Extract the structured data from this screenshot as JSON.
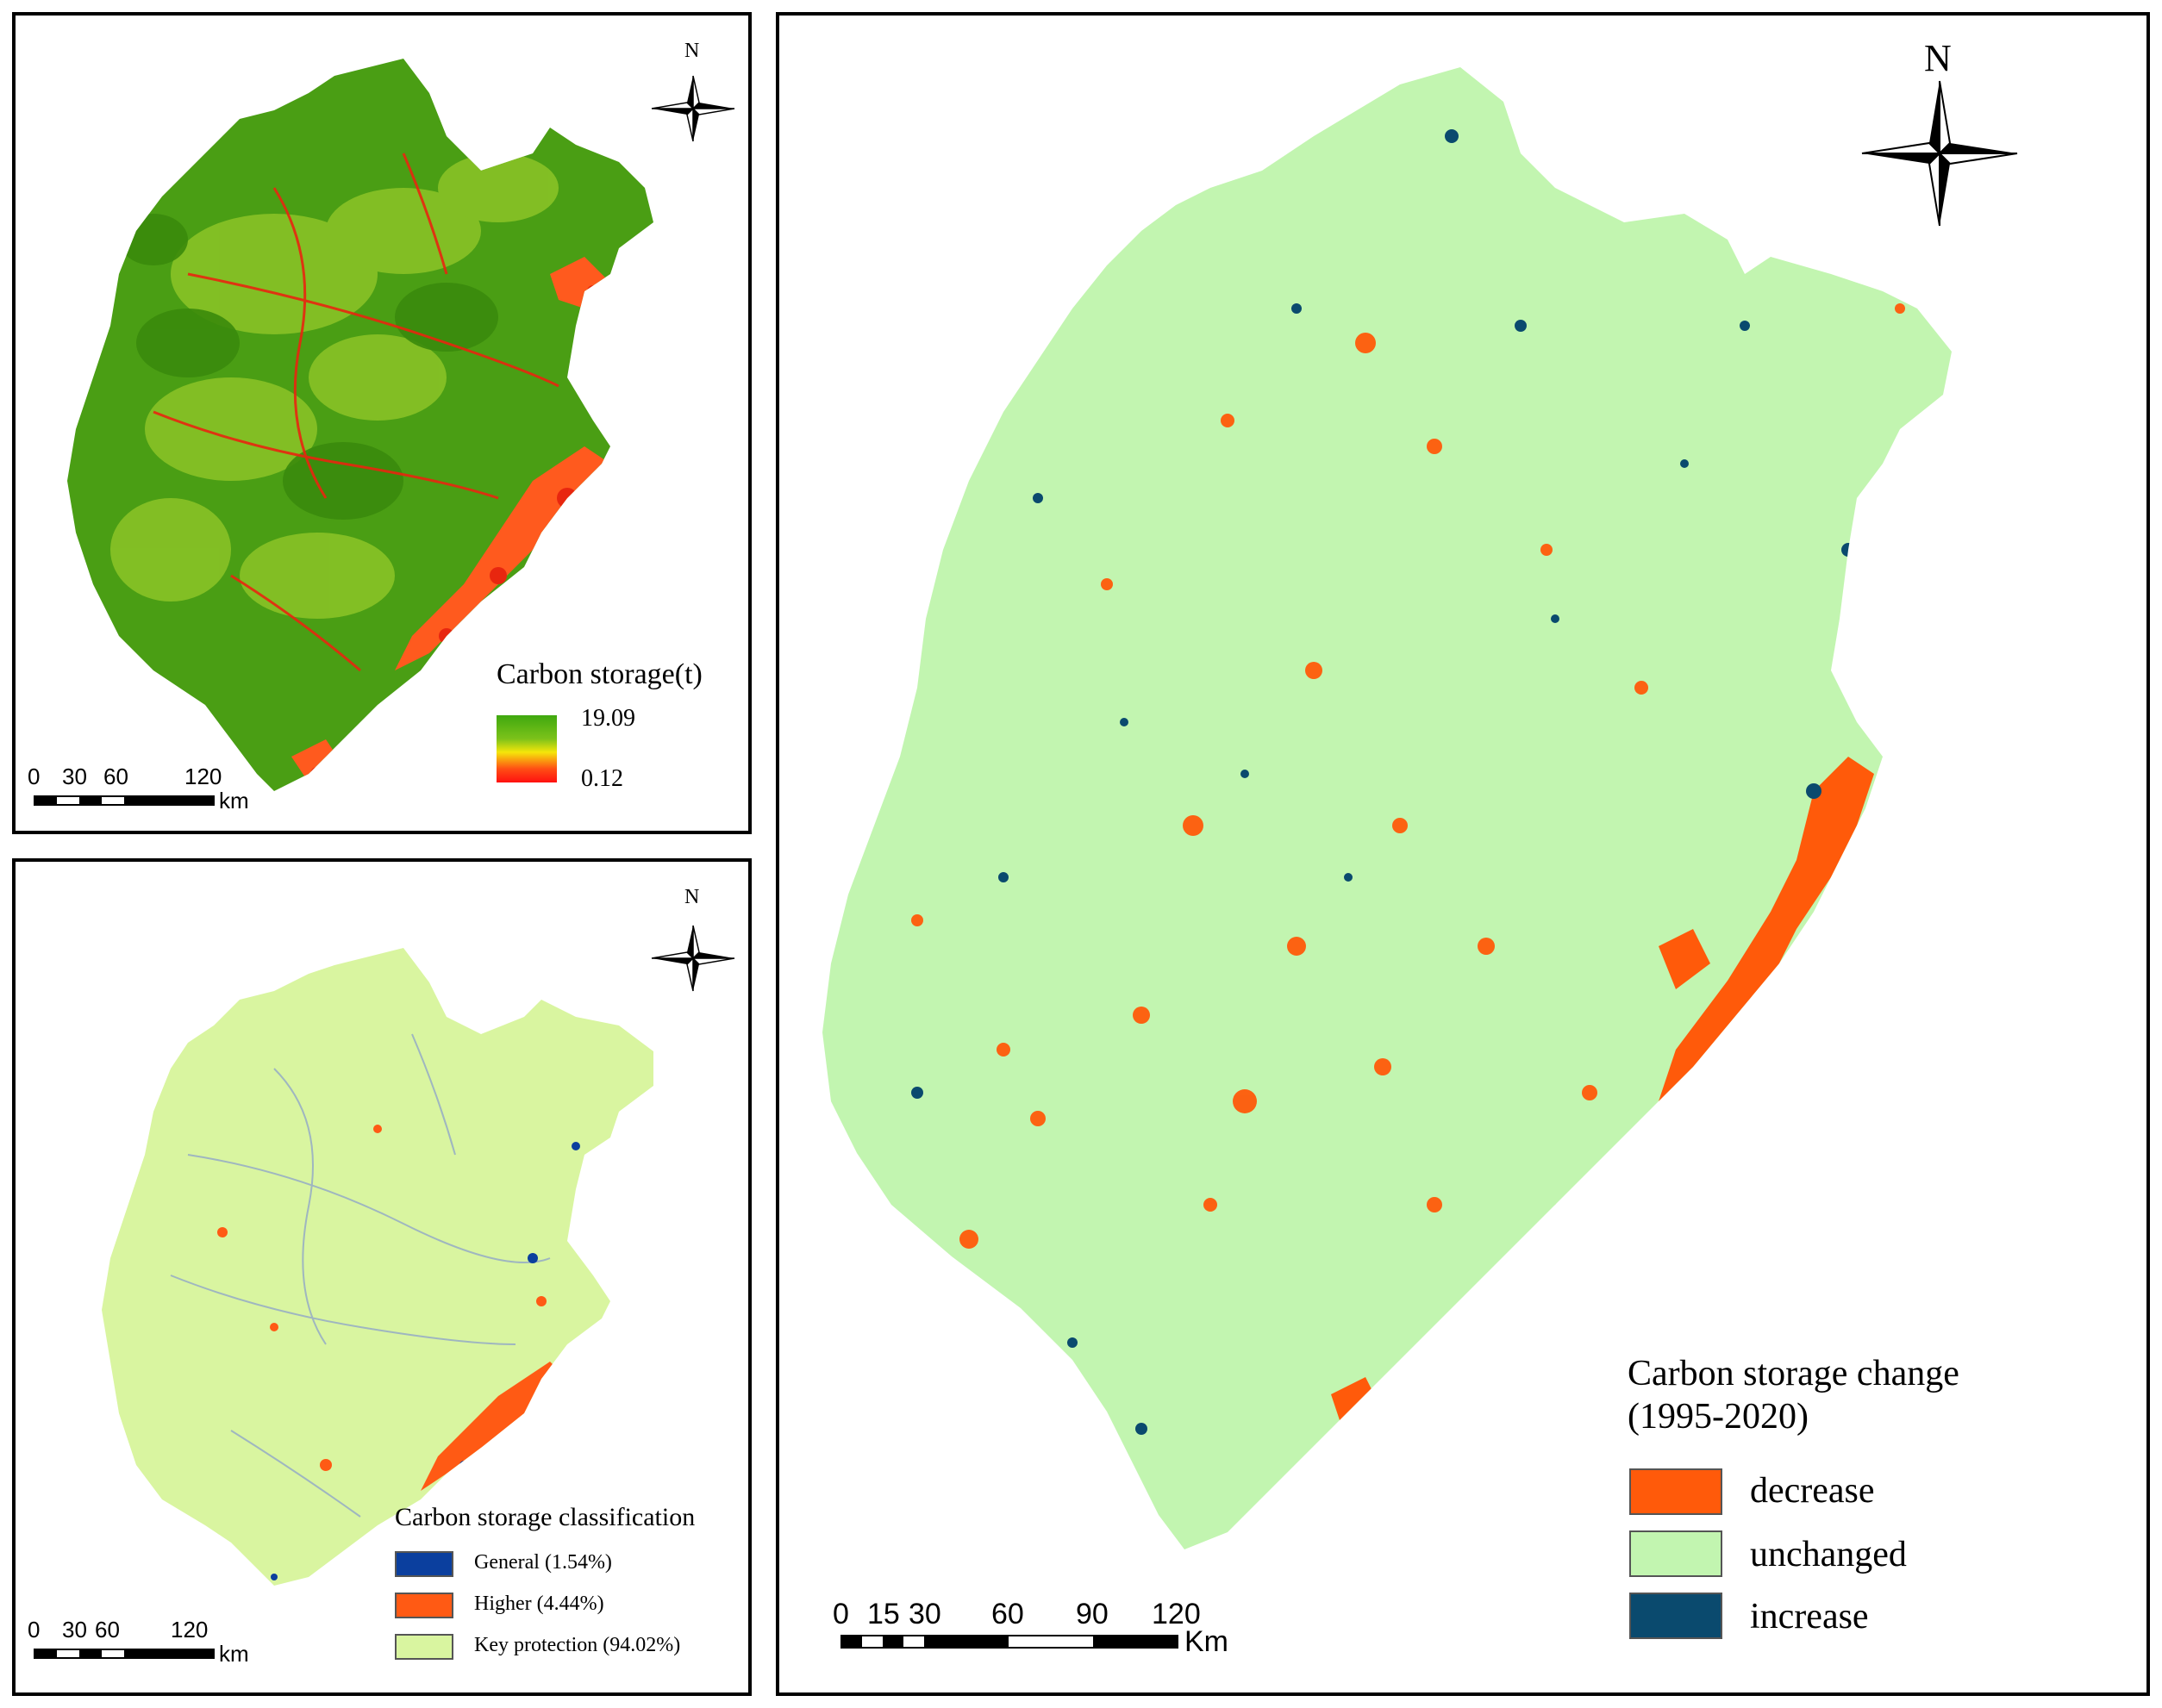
{
  "panel_a": {
    "north_label": "N",
    "legend": {
      "title": "Carbon storage(t)",
      "max_label": "19.09",
      "min_label": "0.12",
      "gradient_colors": [
        "#3fa80f",
        "#7cc21a",
        "#f5e60a",
        "#ff4d14",
        "#ff1010"
      ]
    },
    "scalebar": {
      "ticks": [
        "0",
        "30",
        "60",
        "120"
      ],
      "unit": "km"
    },
    "colors": {
      "land": "#4a9e14",
      "light_green": "#9acd32",
      "orange": "#ff5a1e",
      "red": "#e8260f"
    }
  },
  "panel_b": {
    "north_label": "N",
    "legend": {
      "title": "Carbon storage classification",
      "items": [
        {
          "label": "General (1.54%)",
          "color": "#0b3f9e"
        },
        {
          "label": "Higher (4.44%)",
          "color": "#ff5a14"
        },
        {
          "label": "Key protection (94.02%)",
          "color": "#d9f5a0"
        }
      ]
    },
    "scalebar": {
      "ticks": [
        "0",
        "30",
        "60",
        "120"
      ],
      "unit": "km"
    },
    "colors": {
      "land": "#d9f5a0"
    }
  },
  "panel_c": {
    "north_label": "N",
    "legend": {
      "title_line1": "Carbon storage change",
      "title_line2": "(1995-2020)",
      "items": [
        {
          "label": "decrease",
          "color": "#ff5a0a"
        },
        {
          "label": "unchanged",
          "color": "#c2f5b0"
        },
        {
          "label": "increase",
          "color": "#0a4a6e"
        }
      ]
    },
    "scalebar": {
      "ticks": [
        "0",
        "15",
        "30",
        "60",
        "90",
        "120"
      ],
      "unit": "Km"
    },
    "colors": {
      "land": "#c2f5b0"
    }
  }
}
